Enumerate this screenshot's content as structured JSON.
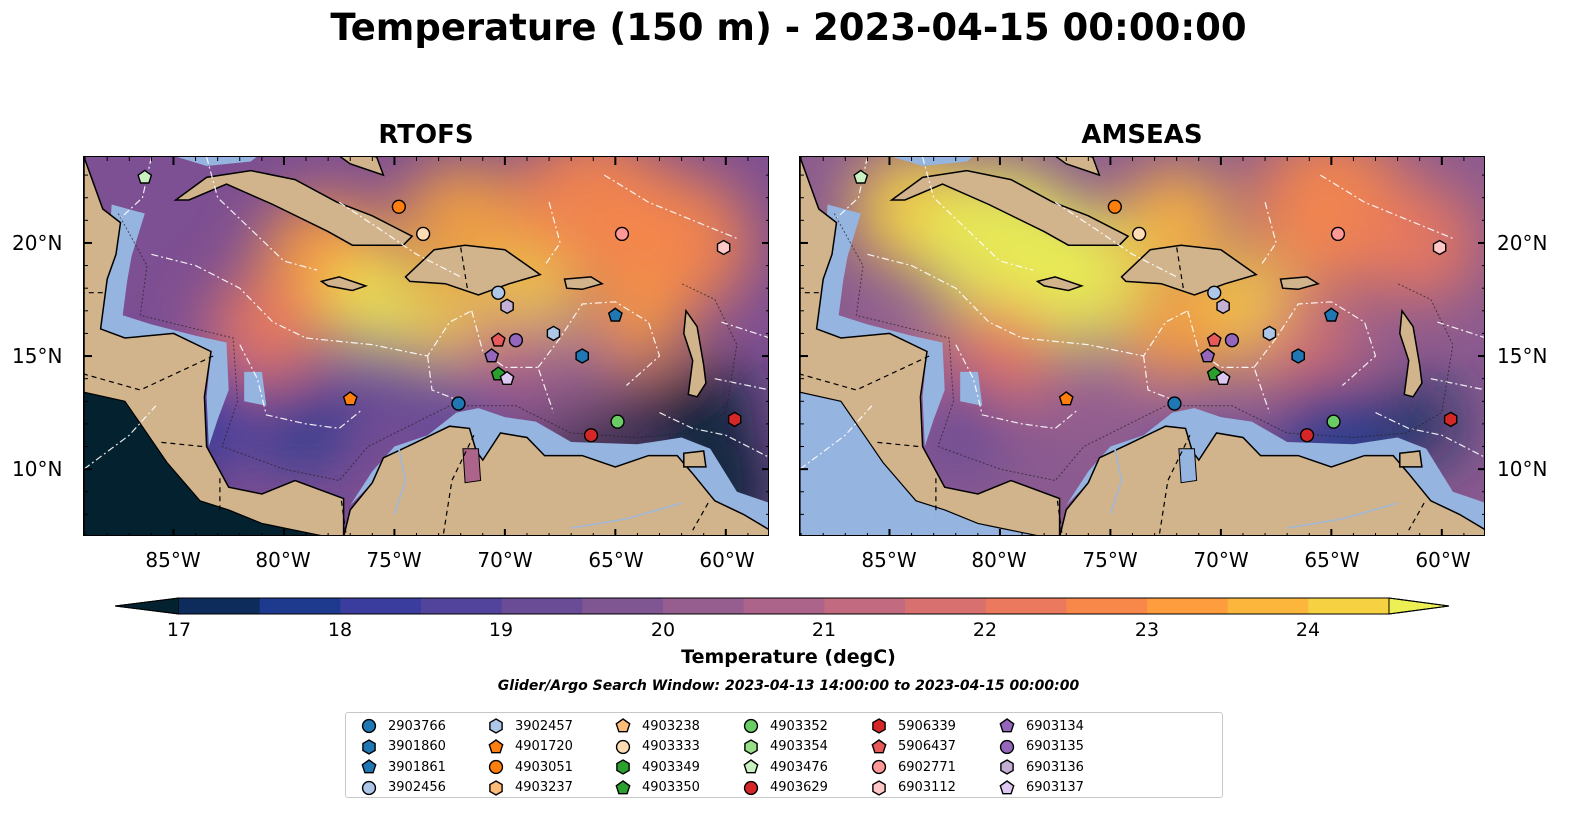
{
  "title": "Temperature (150 m) - 2023-04-15 00:00:00",
  "panels": [
    {
      "name": "RTOFS",
      "variant": "rtofs"
    },
    {
      "name": "AMSEAS",
      "variant": "amseas"
    }
  ],
  "axes": {
    "lon_ticks": [
      "85°W",
      "80°W",
      "75°W",
      "70°W",
      "65°W",
      "60°W"
    ],
    "lat_ticks": [
      "20°N",
      "15°N",
      "10°N"
    ]
  },
  "colorbar": {
    "label": "Temperature (degC)",
    "ticks": [
      "17",
      "18",
      "19",
      "20",
      "21",
      "22",
      "23",
      "24"
    ],
    "colors": [
      "#04212f",
      "#0d2c5c",
      "#1e3a8f",
      "#3a3d9e",
      "#52449c",
      "#6a4c96",
      "#7f5592",
      "#955e8f",
      "#ac648b",
      "#c26a80",
      "#d7706f",
      "#ea795d",
      "#f8884a",
      "#fd9d3e",
      "#fdb63c",
      "#f6d142",
      "#ecf054"
    ],
    "extend_low": "#04212f",
    "extend_high": "#ecf054"
  },
  "search_window": "Glider/Argo Search Window: 2023-04-13 14:00:00 to 2023-04-15 00:00:00",
  "legend": [
    {
      "id": "2903766",
      "color": "#1f77b4",
      "marker": "circle"
    },
    {
      "id": "3901860",
      "color": "#1f77b4",
      "marker": "hexagon"
    },
    {
      "id": "3901861",
      "color": "#1f77b4",
      "marker": "pentagon"
    },
    {
      "id": "3902456",
      "color": "#aec7e8",
      "marker": "circle"
    },
    {
      "id": "3902457",
      "color": "#aec7e8",
      "marker": "hexagon"
    },
    {
      "id": "4901720",
      "color": "#ff7f0e",
      "marker": "pentagon"
    },
    {
      "id": "4903051",
      "color": "#ff7f0e",
      "marker": "circle"
    },
    {
      "id": "4903237",
      "color": "#ffbb78",
      "marker": "hexagon"
    },
    {
      "id": "4903238",
      "color": "#ffbb78",
      "marker": "pentagon"
    },
    {
      "id": "4903333",
      "color": "#ffdcb4",
      "marker": "circle"
    },
    {
      "id": "4903349",
      "color": "#2ca02c",
      "marker": "hexagon"
    },
    {
      "id": "4903350",
      "color": "#2ca02c",
      "marker": "pentagon"
    },
    {
      "id": "4903352",
      "color": "#6acc65",
      "marker": "circle"
    },
    {
      "id": "4903354",
      "color": "#98df8a",
      "marker": "hexagon"
    },
    {
      "id": "4903476",
      "color": "#c8f0c0",
      "marker": "pentagon"
    },
    {
      "id": "4903629",
      "color": "#d62728",
      "marker": "circle"
    },
    {
      "id": "5906339",
      "color": "#d62728",
      "marker": "hexagon"
    },
    {
      "id": "5906437",
      "color": "#e8595a",
      "marker": "pentagon"
    },
    {
      "id": "6902771",
      "color": "#ff9896",
      "marker": "circle"
    },
    {
      "id": "6903112",
      "color": "#ffc8c6",
      "marker": "hexagon"
    },
    {
      "id": "6903134",
      "color": "#9467bd",
      "marker": "pentagon"
    },
    {
      "id": "6903135",
      "color": "#9467bd",
      "marker": "circle"
    },
    {
      "id": "6903136",
      "color": "#c5b0d5",
      "marker": "hexagon"
    },
    {
      "id": "6903137",
      "color": "#dcc8f0",
      "marker": "pentagon"
    }
  ],
  "floats": [
    {
      "id": "4903476",
      "lon": -86.3,
      "lat": 22.9
    },
    {
      "id": "4903051",
      "lon": -74.8,
      "lat": 21.6
    },
    {
      "id": "4903333",
      "lon": -73.7,
      "lat": 20.4
    },
    {
      "id": "6902771",
      "lon": -64.7,
      "lat": 20.4
    },
    {
      "id": "6903112",
      "lon": -60.1,
      "lat": 19.8
    },
    {
      "id": "3902456",
      "lon": -70.3,
      "lat": 17.8
    },
    {
      "id": "6903136",
      "lon": -69.9,
      "lat": 17.2
    },
    {
      "id": "3901861",
      "lon": -65.0,
      "lat": 16.8
    },
    {
      "id": "3902457",
      "lon": -67.8,
      "lat": 16.0
    },
    {
      "id": "6903135",
      "lon": -69.5,
      "lat": 15.7
    },
    {
      "id": "5906437",
      "lon": -70.3,
      "lat": 15.7
    },
    {
      "id": "6903134",
      "lon": -70.6,
      "lat": 15.0
    },
    {
      "id": "3901860",
      "lon": -66.5,
      "lat": 15.0
    },
    {
      "id": "4903350",
      "lon": -70.3,
      "lat": 14.2
    },
    {
      "id": "6903137",
      "lon": -69.9,
      "lat": 14.0
    },
    {
      "id": "4901720",
      "lon": -77.0,
      "lat": 13.1
    },
    {
      "id": "2903766",
      "lon": -72.1,
      "lat": 12.9
    },
    {
      "id": "4903352",
      "lon": -64.9,
      "lat": 12.1
    },
    {
      "id": "4903629",
      "lon": -66.1,
      "lat": 11.5
    },
    {
      "id": "5906339",
      "lon": -59.6,
      "lat": 12.2
    }
  ]
}
